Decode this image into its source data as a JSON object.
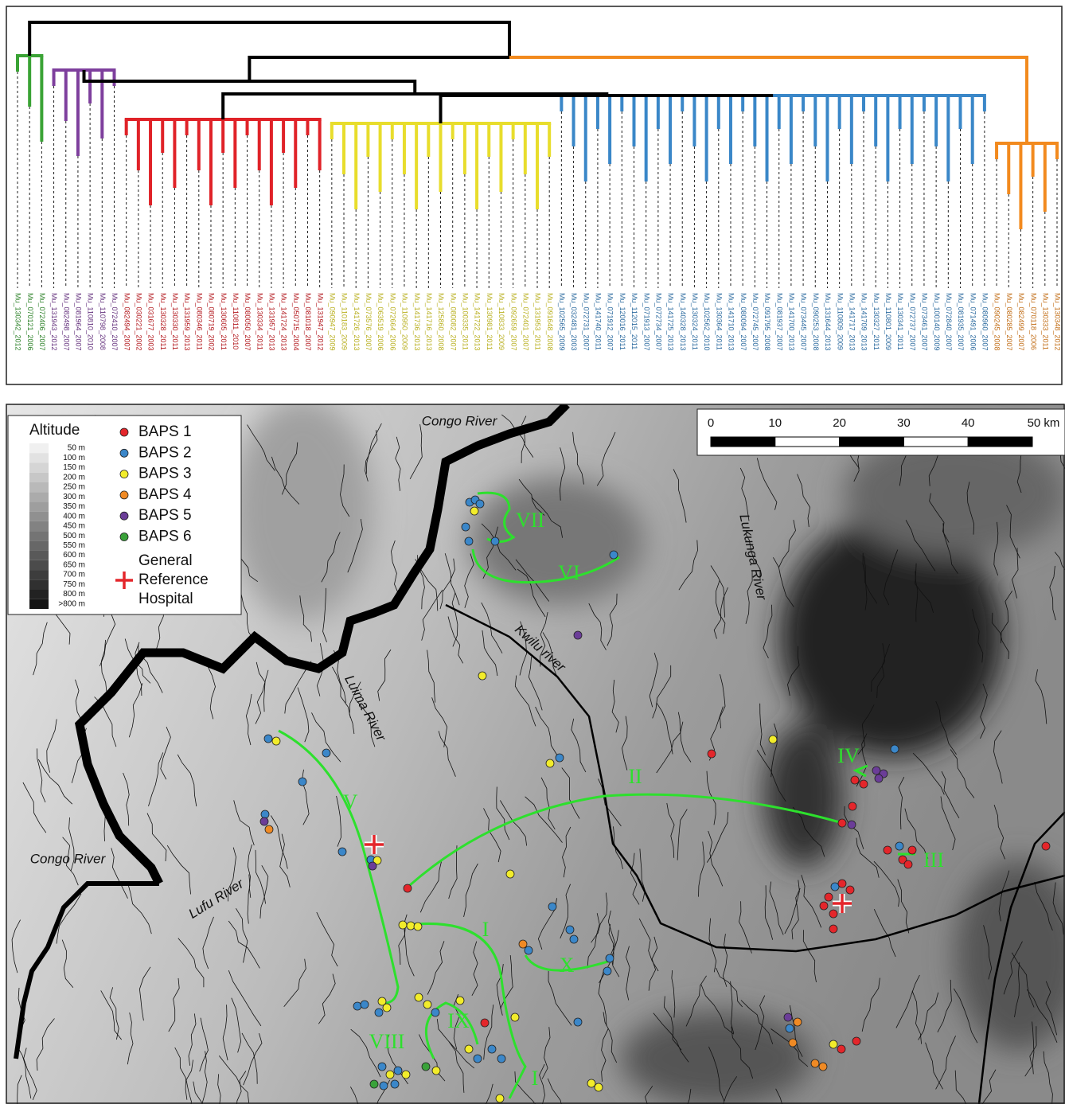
{
  "dendrogram": {
    "clades": [
      {
        "color": "#3aa335",
        "leaves": [
          "Mu_130342_2012",
          "Mu_070121_2006",
          "Mu_072406_2007"
        ]
      },
      {
        "color": "#7e3f9d",
        "leaves": [
          "Mu_131943_2012",
          "Mu_082498_2007",
          "Mu_081964_2007",
          "Mu_110810_2010",
          "Mu_110798_2008",
          "Mu_072410_2007"
        ]
      },
      {
        "color": "#e02228",
        "leaves": [
          "Mu_082494_2007",
          "Mu_030221_2002",
          "Mu_031677_2003",
          "Mu_130328_2011",
          "Mu_130330_2011",
          "Mu_131959_2013",
          "Mu_080346_2011",
          "Mu_080719_2002",
          "Mu_130605_2011",
          "Mu_110811_2010",
          "Mu_080050_2007",
          "Mu_130334_2011",
          "Mu_131957_2013",
          "Mu_141724_2013",
          "Mu_050715_2004",
          "Mu_081018_2007",
          "Mu_131947_2012"
        ]
      },
      {
        "color": "#e8dd2c",
        "leaves": [
          "Mu_090947_2009",
          "Mu_110183_2009",
          "Mu_141726_2013",
          "Mu_073576_2007",
          "Mu_063519_2006",
          "Mu_072664_2006",
          "Mu_110950_2009",
          "Mu_141736_2013",
          "Mu_141716_2013",
          "Mu_125860_2008",
          "Mu_080082_2007",
          "Mu_100335_2011",
          "Mu_141722_2013",
          "Mu_130981_2011",
          "Mu_110833_2009",
          "Mu_092659_2007",
          "Mu_072401_2007",
          "Mu_131953_2011",
          "Mu_091648_2008"
        ]
      },
      {
        "color": "#3a87c8",
        "leaves": [
          "Mu_102565_2009",
          "Mu_032481_2003",
          "Mu_072731_2007",
          "Mu_141740_2011",
          "Mu_071912_2007",
          "Mu_120016_2011",
          "Mu_112015_2011",
          "Mu_071913_2007",
          "Mu_072734_2007",
          "Mu_141725_2013",
          "Mu_140328_2013",
          "Mu_130324_2011",
          "Mu_102562_2010",
          "Mu_130364_2011",
          "Mu_141710_2013",
          "Mu_080094_2007",
          "Mu_072745_2007",
          "Mu_091795_2008",
          "Mu_081937_2007",
          "Mu_141700_2013",
          "Mu_073445_2007",
          "Mu_090253_2008",
          "Mu_131644_2013",
          "Mu_110809_2009",
          "Mu_141717_2013",
          "Mu_141709_2013",
          "Mu_130327_2011",
          "Mu_110801_2009",
          "Mu_130341_2011",
          "Mu_072737_2007",
          "Mu_073461_2007",
          "Mu_100140_2009",
          "Mu_072840_2007",
          "Mu_081935_2007",
          "Mu_071491_2006",
          "Mu_080960_2007"
        ]
      },
      {
        "color": "#f28a1e",
        "leaves": [
          "Mu_090245_2008",
          "Mu_080285_2007",
          "Mu_082499_2007",
          "Mu_070118_2006",
          "Mu_130333_2011",
          "Mu_130348_2012"
        ]
      }
    ]
  },
  "map": {
    "legend": {
      "altitude_title": "Altitude",
      "altitude_levels": [
        "50 m",
        "100 m",
        "150 m",
        "200 m",
        "250 m",
        "300 m",
        "350 m",
        "400 m",
        "450 m",
        "500 m",
        "550 m",
        "600 m",
        "650 m",
        "700 m",
        "750 m",
        "800 m",
        ">800 m"
      ],
      "groups": [
        {
          "label": "BAPS 1",
          "color": "#e4262b"
        },
        {
          "label": "BAPS 2",
          "color": "#3b87c9"
        },
        {
          "label": "BAPS 3",
          "color": "#f2ec2b"
        },
        {
          "label": "BAPS 4",
          "color": "#f08a24"
        },
        {
          "label": "BAPS 5",
          "color": "#6b3d98"
        },
        {
          "label": "BAPS 6",
          "color": "#3aa23a"
        }
      ],
      "hospital_label": [
        "General",
        "Reference",
        "Hospital"
      ]
    },
    "scale_bar": [
      "0",
      "10",
      "20",
      "30",
      "40",
      "50 km"
    ],
    "rivers": [
      "Congo River",
      "Congo River",
      "Lukunga River",
      "Kwilu river",
      "Luima River",
      "Lufu River"
    ],
    "clusters": [
      "VII",
      "VI",
      "V",
      "IV",
      "II",
      "III",
      "I",
      "X",
      "IX",
      "VIII",
      "I"
    ]
  }
}
